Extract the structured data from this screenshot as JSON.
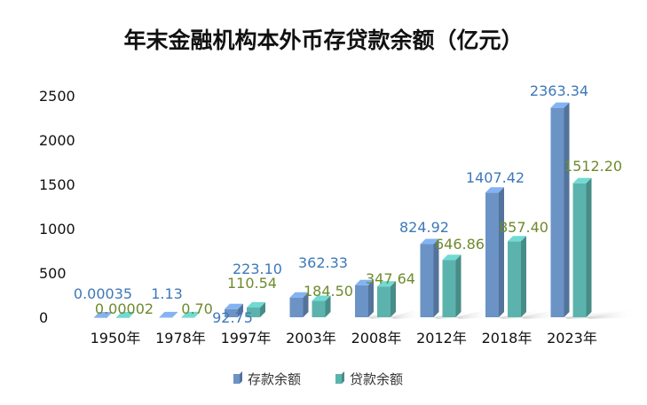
{
  "chart_data": {
    "type": "bar",
    "title": "年末金融机构本外币存贷款余额（亿元）",
    "categories": [
      "1950年",
      "1978年",
      "1997年",
      "2003年",
      "2008年",
      "2012年",
      "2018年",
      "2023年"
    ],
    "series": [
      {
        "name": "存款余额",
        "values": [
          0.00035,
          1.13,
          92.75,
          223.1,
          362.33,
          824.92,
          1407.42,
          2363.34
        ],
        "labels": [
          "0.00035",
          "1.13",
          "92.75",
          "223.10",
          "362.33",
          "824.92",
          "1407.42",
          "2363.34"
        ],
        "color": "#6b93c6",
        "label_color": "#3e78b8"
      },
      {
        "name": "贷款余额",
        "values": [
          2e-05,
          0.7,
          110.54,
          184.5,
          347.64,
          646.86,
          857.4,
          1512.2
        ],
        "labels": [
          "0.00002",
          "0.70",
          "110.54",
          "184.50",
          "347.64",
          "646.86",
          "857.40",
          "1512.20"
        ],
        "color": "#5cb3ad",
        "label_color": "#6e8a2e"
      }
    ],
    "y_ticks": [
      0,
      500,
      1000,
      1500,
      2000,
      2500
    ],
    "ylim": [
      0,
      2500
    ],
    "xlabel": "",
    "ylabel": "",
    "grid": false,
    "legend_position": "bottom-center"
  }
}
